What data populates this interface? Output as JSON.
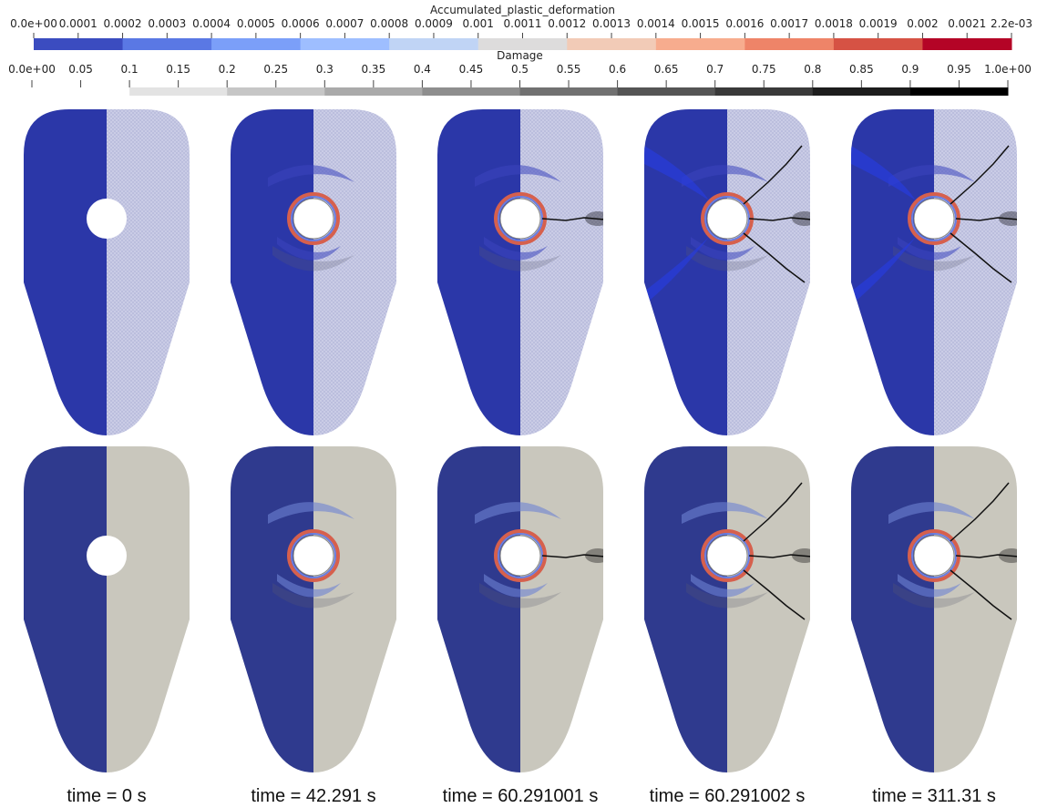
{
  "colorbars": [
    {
      "title": "Accumulated_plastic_deformation",
      "range": [
        0,
        0.0022
      ],
      "ticks": [
        {
          "value": 0,
          "label": "0.0e+00"
        },
        0.0001,
        0.0002,
        0.0003,
        0.0004,
        0.0005,
        0.0006,
        0.0007,
        0.0008,
        0.0009,
        0.001,
        0.0011,
        0.0012,
        0.0013,
        0.0014,
        0.0015,
        0.0016,
        0.0017,
        0.0018,
        0.0019,
        0.002,
        0.0021,
        {
          "value": 0.0022,
          "label": "2.2e-03"
        }
      ],
      "colors": [
        "#3b4cc0",
        "#5a78e4",
        "#7b9ff9",
        "#9ebeff",
        "#c0d4f5",
        "#dddcdc",
        "#f2cbb7",
        "#f7ac8e",
        "#ee8468",
        "#d65244",
        "#b40426"
      ]
    },
    {
      "title": "Damage",
      "range": [
        0,
        1
      ],
      "ticks": [
        {
          "value": 0,
          "label": "0.0e+00"
        },
        0.05,
        0.1,
        0.15,
        0.2,
        0.25,
        0.3,
        0.35,
        0.4,
        0.45,
        0.5,
        0.55,
        0.6,
        0.65,
        0.7,
        0.75,
        0.8,
        0.85,
        0.9,
        0.95,
        {
          "value": 1,
          "label": "1.0e+00"
        }
      ],
      "colors": [
        null,
        "#e3e3e3",
        "#c6c6c6",
        "#aaaaaa",
        "#8e8e8e",
        "#717171",
        "#555555",
        "#393939",
        "#1d1d1d",
        "#000000"
      ]
    }
  ],
  "panels": [
    {
      "label": "time = 0 s"
    },
    {
      "label": "time = 42.291 s"
    },
    {
      "label": "time = 60.291001 s"
    },
    {
      "label": "time = 60.291002 s"
    },
    {
      "label": "time = 311.31 s"
    }
  ]
}
